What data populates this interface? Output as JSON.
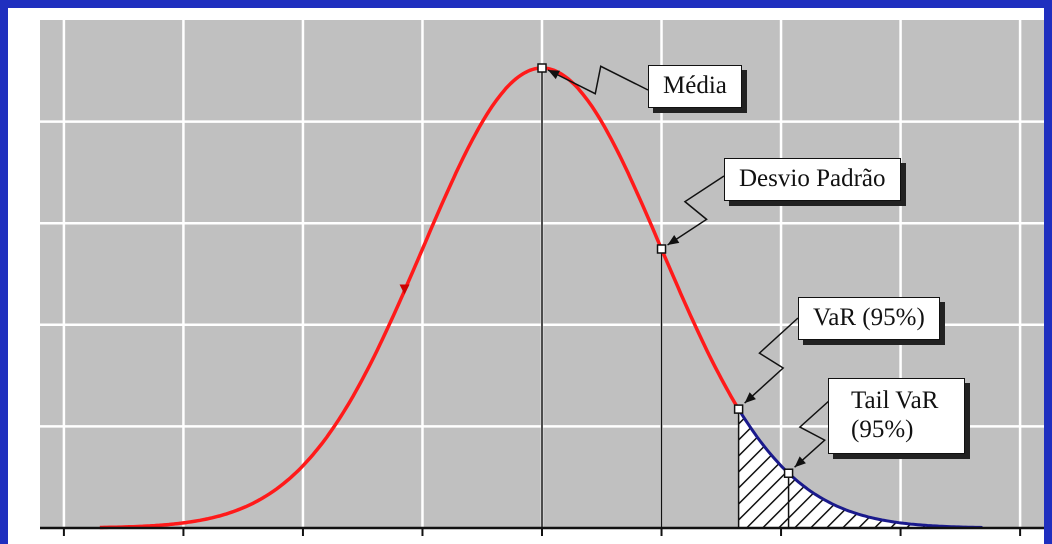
{
  "chart_data": {
    "type": "area",
    "distribution": "normal",
    "x_range": [
      -4.2,
      4.2
    ],
    "mean": 0,
    "std": 1,
    "var_95": 1.645,
    "tail_var_95": 2.063,
    "grid": true,
    "colors": {
      "curve": "#ff1a1a",
      "tail_curve": "#1a1a8c",
      "grid_bg": "#c0c0c0",
      "grid_lines": "#ffffff",
      "frame": "#1f2fbf"
    },
    "annotations": [
      {
        "key": "mean",
        "label": "Média"
      },
      {
        "key": "std",
        "label": "Desvio Padrão"
      },
      {
        "key": "var",
        "label": "VaR (95%)"
      },
      {
        "key": "tail_var",
        "label": "Tail VaR (95%)"
      }
    ]
  },
  "labels": {
    "mean": "Média",
    "std": "Desvio Padrão",
    "var": "VaR (95%)",
    "tail_var_line1": "Tail VaR",
    "tail_var_line2": "(95%)"
  }
}
